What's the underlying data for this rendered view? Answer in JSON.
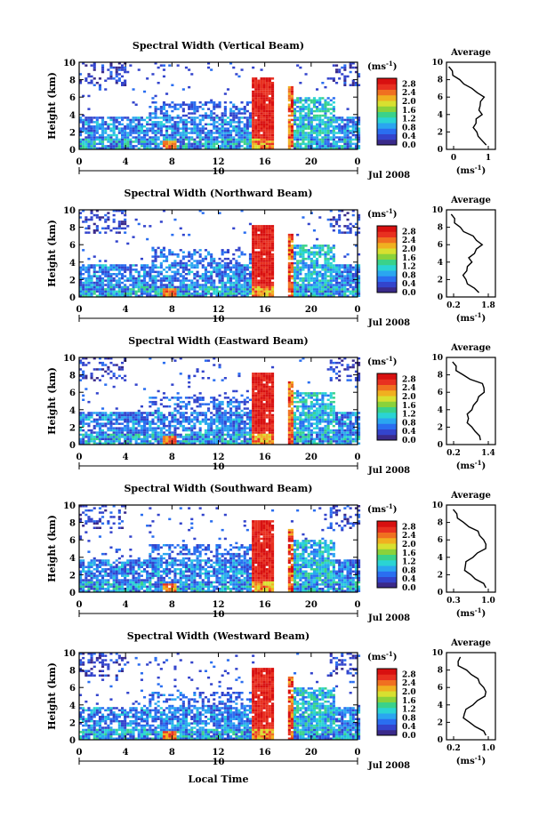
{
  "figure": {
    "xlabel": "Local Time",
    "date_label": "Jul 2008",
    "day_label": "10",
    "colorbar_unit": "(ms",
    "colorbar_unit_exp": "-1",
    "colorbar_unit_close": ")",
    "profile_xlabel": "(ms",
    "profile_xlabel_exp": "-1",
    "profile_xlabel_close": ")"
  },
  "colors": {
    "scale": [
      "#3a2a8a",
      "#3344cc",
      "#2a6ef0",
      "#2aa6f0",
      "#2ad4d4",
      "#3ad28a",
      "#8ad23a",
      "#d8e030",
      "#f0b020",
      "#f07020",
      "#e83020",
      "#d81010"
    ]
  },
  "chart_data": [
    {
      "type": "heatmap",
      "title": "Spectral Width (Vertical Beam)",
      "ylabel": "Height (km)",
      "xlabel": "Local Time",
      "x_ticks": [
        "0",
        "4",
        "8",
        "12",
        "16",
        "20",
        "0"
      ],
      "y_ticks": [
        "0",
        "2",
        "4",
        "6",
        "8",
        "10"
      ],
      "xlim": [
        0,
        24
      ],
      "ylim": [
        0,
        10
      ],
      "colorbar_ticks": [
        "0.0",
        "0.4",
        "0.8",
        "1.2",
        "1.6",
        "2.0",
        "2.4",
        "2.8"
      ],
      "colorbar_range": [
        0,
        2.8
      ],
      "profile": {
        "title": "Average",
        "xlim": [
          0,
          1.2
        ],
        "x_ticks": [
          "0",
          "1"
        ],
        "y_ticks": [
          "0",
          "2",
          "4",
          "6",
          "8",
          "10"
        ],
        "heights": [
          0.5,
          1,
          1.5,
          2,
          2.5,
          3,
          3.5,
          4,
          4.5,
          5,
          5.5,
          6,
          6.5,
          7,
          7.5,
          8,
          8.5,
          9,
          9.5
        ],
        "values": [
          1.0,
          0.85,
          0.8,
          0.72,
          0.68,
          0.7,
          0.75,
          0.85,
          0.82,
          0.8,
          0.86,
          0.9,
          0.78,
          0.6,
          0.45,
          0.3,
          0.18,
          0.12,
          0.08
        ]
      }
    },
    {
      "type": "heatmap",
      "title": "Spectral Width (Northward Beam)",
      "ylabel": "Height (km)",
      "xlabel": "Local Time",
      "x_ticks": [
        "0",
        "4",
        "8",
        "12",
        "16",
        "20",
        "0"
      ],
      "y_ticks": [
        "0",
        "2",
        "4",
        "6",
        "8",
        "10"
      ],
      "xlim": [
        0,
        24
      ],
      "ylim": [
        0,
        10
      ],
      "colorbar_ticks": [
        "0.0",
        "0.4",
        "0.8",
        "1.2",
        "1.6",
        "2.0",
        "2.4",
        "2.8"
      ],
      "colorbar_range": [
        0,
        2.8
      ],
      "profile": {
        "title": "Average",
        "xlim": [
          0,
          1.9
        ],
        "x_ticks": [
          "0.2",
          "1.8"
        ],
        "y_ticks": [
          "0",
          "2",
          "4",
          "6",
          "8",
          "10"
        ],
        "heights": [
          0.5,
          1,
          1.5,
          2,
          2.5,
          3,
          3.5,
          4,
          4.5,
          5,
          5.5,
          6,
          6.5,
          7,
          7.5,
          8,
          8.5,
          9,
          9.5
        ],
        "values": [
          1.3,
          1.05,
          0.85,
          0.72,
          0.68,
          0.75,
          0.85,
          0.95,
          0.9,
          1.05,
          1.2,
          1.35,
          1.2,
          1.0,
          0.7,
          0.5,
          0.35,
          0.28,
          0.22
        ]
      }
    },
    {
      "type": "heatmap",
      "title": "Spectral Width (Eastward Beam)",
      "ylabel": "Height (km)",
      "xlabel": "Local Time",
      "x_ticks": [
        "0",
        "4",
        "8",
        "12",
        "16",
        "20",
        "0"
      ],
      "y_ticks": [
        "0",
        "2",
        "4",
        "6",
        "8",
        "10"
      ],
      "xlim": [
        0,
        24
      ],
      "ylim": [
        0,
        10
      ],
      "colorbar_ticks": [
        "0.0",
        "0.4",
        "0.8",
        "1.2",
        "1.6",
        "2.0",
        "2.4",
        "2.8"
      ],
      "colorbar_range": [
        0,
        2.8
      ],
      "profile": {
        "title": "Average",
        "xlim": [
          0,
          1.4
        ],
        "x_ticks": [
          "0.2",
          "1.4"
        ],
        "y_ticks": [
          "0",
          "2",
          "4",
          "6",
          "8",
          "10"
        ],
        "heights": [
          0.5,
          1,
          1.5,
          2,
          2.5,
          3,
          3.5,
          4,
          4.5,
          5,
          5.5,
          6,
          6.5,
          7,
          7.5,
          8,
          8.5,
          9,
          9.5
        ],
        "values": [
          1.0,
          0.92,
          0.85,
          0.7,
          0.62,
          0.6,
          0.62,
          0.7,
          0.8,
          0.85,
          0.95,
          1.05,
          1.1,
          1.0,
          0.7,
          0.45,
          0.3,
          0.25,
          0.2
        ]
      }
    },
    {
      "type": "heatmap",
      "title": "Spectral Width (Southward Beam)",
      "ylabel": "Height (km)",
      "xlabel": "Local Time",
      "x_ticks": [
        "0",
        "4",
        "8",
        "12",
        "16",
        "20",
        "0"
      ],
      "y_ticks": [
        "0",
        "2",
        "4",
        "6",
        "8",
        "10"
      ],
      "xlim": [
        0,
        24
      ],
      "ylim": [
        0,
        10
      ],
      "colorbar_ticks": [
        "0.0",
        "0.4",
        "0.8",
        "1.2",
        "1.6",
        "2.0",
        "2.4",
        "2.8"
      ],
      "colorbar_range": [
        0,
        2.8
      ],
      "profile": {
        "title": "Average",
        "xlim": [
          0,
          1.15
        ],
        "x_ticks": [
          "0.3",
          "1.0"
        ],
        "y_ticks": [
          "0",
          "2",
          "4",
          "6",
          "8",
          "10"
        ],
        "heights": [
          0.5,
          1,
          1.5,
          2,
          2.5,
          3,
          3.5,
          4,
          4.5,
          5,
          5.5,
          6,
          6.5,
          7,
          7.5,
          8,
          8.5,
          9,
          9.5
        ],
        "values": [
          0.95,
          0.85,
          0.7,
          0.55,
          0.45,
          0.42,
          0.48,
          0.6,
          0.75,
          0.9,
          0.95,
          0.85,
          0.8,
          0.72,
          0.55,
          0.38,
          0.28,
          0.22,
          0.18
        ]
      }
    },
    {
      "type": "heatmap",
      "title": "Spectral Width (Westward Beam)",
      "ylabel": "Height (km)",
      "xlabel": "Local Time",
      "x_ticks": [
        "0",
        "4",
        "8",
        "12",
        "16",
        "20",
        "0"
      ],
      "y_ticks": [
        "0",
        "2",
        "4",
        "6",
        "8",
        "10"
      ],
      "xlim": [
        0,
        24
      ],
      "ylim": [
        0,
        10
      ],
      "colorbar_ticks": [
        "0.0",
        "0.4",
        "0.8",
        "1.2",
        "1.6",
        "2.0",
        "2.4",
        "2.8"
      ],
      "colorbar_range": [
        0,
        2.8
      ],
      "profile": {
        "title": "Average",
        "xlim": [
          0,
          1.15
        ],
        "x_ticks": [
          "0.2",
          "1.0"
        ],
        "y_ticks": [
          "0",
          "2",
          "4",
          "6",
          "8",
          "10"
        ],
        "heights": [
          0.5,
          1,
          1.5,
          2,
          2.5,
          3,
          3.5,
          4,
          4.5,
          5,
          5.5,
          6,
          6.5,
          7,
          7.5,
          8,
          8.5,
          9,
          9.5
        ],
        "values": [
          0.95,
          0.85,
          0.7,
          0.52,
          0.42,
          0.4,
          0.48,
          0.6,
          0.75,
          0.88,
          0.95,
          0.85,
          0.8,
          0.72,
          0.6,
          0.45,
          0.3,
          0.25,
          0.35
        ]
      }
    }
  ]
}
